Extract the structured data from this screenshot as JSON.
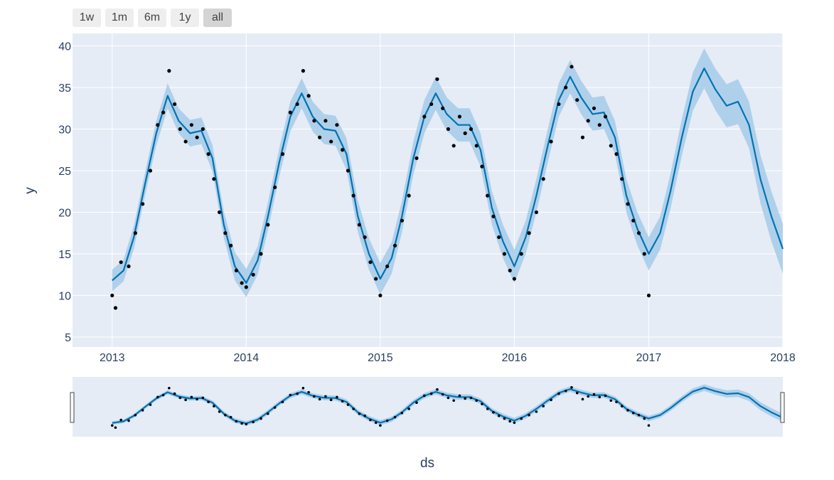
{
  "range_buttons": [
    {
      "label": "1w",
      "active": false
    },
    {
      "label": "1m",
      "active": false
    },
    {
      "label": "6m",
      "active": false
    },
    {
      "label": "1y",
      "active": false
    },
    {
      "label": "all",
      "active": true
    }
  ],
  "colors": {
    "plot_bg": "#e5ecf6",
    "grid": "#ffffff",
    "forecast_line": "#0072b2",
    "uncertainty_band": "#a6cbe8",
    "actual_points": "#000000",
    "tick_text": "#2a3f5f"
  },
  "chart_data": {
    "type": "line",
    "xlabel": "ds",
    "ylabel": "y",
    "x_ticks": [
      "2013",
      "2014",
      "2015",
      "2016",
      "2017",
      "2018"
    ],
    "y_ticks": [
      5,
      10,
      15,
      20,
      25,
      30,
      35,
      40
    ],
    "xlim": [
      "2012-09-15",
      "2018-01-01"
    ],
    "ylim": [
      3.8,
      41.5
    ],
    "grid": true,
    "legend": "none",
    "range_slider": true,
    "series": [
      {
        "kind": "forecast",
        "x": [
          "2013-01-01",
          "2013-02-01",
          "2013-03-01",
          "2013-04-01",
          "2013-05-01",
          "2013-06-01",
          "2013-07-01",
          "2013-08-01",
          "2013-09-01",
          "2013-10-01",
          "2013-11-01",
          "2013-12-01",
          "2014-01-01",
          "2014-02-01",
          "2014-03-01",
          "2014-04-01",
          "2014-05-01",
          "2014-06-01",
          "2014-07-01",
          "2014-08-01",
          "2014-09-01",
          "2014-10-01",
          "2014-11-01",
          "2014-12-01",
          "2015-01-01",
          "2015-02-01",
          "2015-03-01",
          "2015-04-01",
          "2015-05-01",
          "2015-06-01",
          "2015-07-01",
          "2015-08-01",
          "2015-09-01",
          "2015-10-01",
          "2015-11-01",
          "2015-12-01",
          "2016-01-01",
          "2016-02-01",
          "2016-03-01",
          "2016-04-01",
          "2016-05-01",
          "2016-06-01",
          "2016-07-01",
          "2016-08-01",
          "2016-09-01",
          "2016-10-01",
          "2016-11-01",
          "2016-12-01",
          "2017-01-01",
          "2017-02-01",
          "2017-03-01",
          "2017-04-01",
          "2017-05-01",
          "2017-06-01",
          "2017-07-01",
          "2017-08-01",
          "2017-09-01",
          "2017-10-01",
          "2017-11-01",
          "2017-12-01",
          "2018-01-01"
        ],
        "yhat": [
          11.8,
          13.0,
          17.0,
          23.5,
          29.5,
          34.0,
          31.0,
          29.5,
          29.8,
          26.5,
          18.5,
          13.5,
          11.5,
          14.2,
          19.5,
          26.0,
          31.5,
          34.3,
          31.5,
          30.0,
          29.8,
          27.0,
          19.5,
          15.0,
          12.0,
          14.5,
          19.5,
          26.5,
          31.5,
          34.3,
          31.8,
          30.5,
          30.5,
          27.5,
          20.5,
          16.5,
          13.5,
          17.0,
          22.0,
          28.0,
          33.5,
          36.3,
          33.8,
          31.8,
          32.0,
          29.0,
          22.0,
          18.0,
          15.0,
          17.5,
          22.5,
          29.0,
          34.5,
          37.3,
          34.8,
          32.8,
          33.3,
          30.5,
          24.0,
          19.5,
          15.6
        ],
        "band_halfwidth": [
          1.3,
          1.3,
          1.4,
          1.4,
          1.5,
          1.5,
          1.5,
          1.6,
          1.6,
          1.6,
          1.6,
          1.7,
          1.7,
          1.7,
          1.7,
          1.7,
          1.8,
          1.8,
          1.8,
          1.8,
          1.8,
          1.9,
          1.9,
          1.9,
          1.9,
          1.9,
          1.9,
          2.0,
          2.0,
          2.0,
          2.0,
          2.0,
          2.0,
          2.0,
          2.0,
          2.0,
          2.0,
          2.0,
          2.0,
          2.0,
          2.0,
          2.0,
          2.0,
          2.0,
          2.0,
          2.0,
          2.0,
          2.0,
          2.0,
          2.0,
          2.1,
          2.2,
          2.3,
          2.4,
          2.5,
          2.6,
          2.7,
          2.8,
          2.9,
          3.0,
          3.0
        ]
      },
      {
        "kind": "actual",
        "x": [
          "2013-01-01",
          "2013-01-10",
          "2013-01-25",
          "2013-02-15",
          "2013-03-05",
          "2013-03-25",
          "2013-04-15",
          "2013-05-05",
          "2013-05-20",
          "2013-06-05",
          "2013-06-20",
          "2013-07-05",
          "2013-07-20",
          "2013-08-05",
          "2013-08-20",
          "2013-09-05",
          "2013-09-20",
          "2013-10-05",
          "2013-10-20",
          "2013-11-05",
          "2013-11-20",
          "2013-12-05",
          "2013-12-20",
          "2014-01-01",
          "2014-01-20",
          "2014-02-10",
          "2014-03-01",
          "2014-03-20",
          "2014-04-10",
          "2014-05-01",
          "2014-05-20",
          "2014-06-05",
          "2014-06-20",
          "2014-07-05",
          "2014-07-20",
          "2014-08-05",
          "2014-08-20",
          "2014-09-05",
          "2014-09-20",
          "2014-10-05",
          "2014-10-20",
          "2014-11-05",
          "2014-11-20",
          "2014-12-05",
          "2014-12-20",
          "2015-01-01",
          "2015-01-20",
          "2015-02-10",
          "2015-03-01",
          "2015-03-20",
          "2015-04-10",
          "2015-05-01",
          "2015-05-20",
          "2015-06-05",
          "2015-06-20",
          "2015-07-05",
          "2015-07-20",
          "2015-08-05",
          "2015-08-20",
          "2015-09-05",
          "2015-09-20",
          "2015-10-05",
          "2015-10-20",
          "2015-11-05",
          "2015-11-20",
          "2015-12-05",
          "2015-12-20",
          "2016-01-01",
          "2016-01-20",
          "2016-02-10",
          "2016-03-01",
          "2016-03-20",
          "2016-04-10",
          "2016-05-01",
          "2016-05-20",
          "2016-06-05",
          "2016-06-20",
          "2016-07-05",
          "2016-07-20",
          "2016-08-05",
          "2016-08-20",
          "2016-09-05",
          "2016-09-20",
          "2016-10-05",
          "2016-10-20",
          "2016-11-05",
          "2016-11-20",
          "2016-12-05",
          "2016-12-20",
          "2017-01-01"
        ],
        "y": [
          10.0,
          8.5,
          14.0,
          13.5,
          17.5,
          21.0,
          25.0,
          30.5,
          32.0,
          37.0,
          33.0,
          30.0,
          28.5,
          30.5,
          29.0,
          30.0,
          27.0,
          24.0,
          20.0,
          17.5,
          16.0,
          13.0,
          11.5,
          11.0,
          12.5,
          15.0,
          18.5,
          23.0,
          27.0,
          32.0,
          33.0,
          37.0,
          34.0,
          31.0,
          29.0,
          31.0,
          28.5,
          30.5,
          27.5,
          25.0,
          22.0,
          18.5,
          17.0,
          14.0,
          12.0,
          10.0,
          13.5,
          16.0,
          19.0,
          22.0,
          26.5,
          31.5,
          33.0,
          36.0,
          32.5,
          30.0,
          28.0,
          31.5,
          29.5,
          30.0,
          28.0,
          25.5,
          22.0,
          19.5,
          17.0,
          15.0,
          13.0,
          12.0,
          15.0,
          17.5,
          20.0,
          24.0,
          28.5,
          33.0,
          35.0,
          37.5,
          33.5,
          29.0,
          31.0,
          32.5,
          30.5,
          31.5,
          28.0,
          27.0,
          24.0,
          21.0,
          19.0,
          17.5,
          15.0,
          10.0
        ]
      }
    ]
  }
}
